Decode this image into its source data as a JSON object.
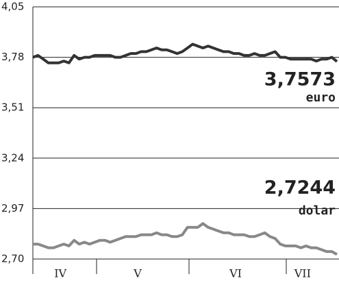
{
  "chart_data": {
    "type": "line",
    "categories": [
      null,
      null,
      null,
      null,
      null,
      null,
      "IV",
      null,
      null,
      null,
      null,
      null,
      null,
      null,
      null,
      null,
      null,
      null,
      null,
      null,
      null,
      "V",
      null,
      null,
      null,
      null,
      null,
      null,
      null,
      null,
      null,
      null,
      null,
      null,
      null,
      null,
      null,
      null,
      null,
      null,
      "VI",
      null,
      null,
      null,
      null,
      null,
      null,
      null,
      null,
      null,
      null,
      null,
      null,
      "VII",
      null,
      null,
      null,
      null,
      null,
      null
    ],
    "series": [
      {
        "name": "euro",
        "color": "#333333",
        "values": [
          3.78,
          3.79,
          3.77,
          3.75,
          3.75,
          3.75,
          3.76,
          3.75,
          3.79,
          3.77,
          3.78,
          3.78,
          3.79,
          3.79,
          3.79,
          3.79,
          3.78,
          3.78,
          3.79,
          3.8,
          3.8,
          3.81,
          3.81,
          3.82,
          3.83,
          3.82,
          3.82,
          3.81,
          3.8,
          3.81,
          3.83,
          3.85,
          3.84,
          3.83,
          3.84,
          3.83,
          3.82,
          3.81,
          3.81,
          3.8,
          3.8,
          3.79,
          3.79,
          3.8,
          3.79,
          3.79,
          3.8,
          3.81,
          3.78,
          3.78,
          3.77,
          3.77,
          3.77,
          3.77,
          3.77,
          3.76,
          3.77,
          3.77,
          3.78,
          3.7573
        ],
        "value_labels": [
          null,
          null,
          null,
          null,
          null,
          null,
          null,
          null,
          null,
          null,
          null,
          null,
          null,
          null,
          null,
          null,
          null,
          null,
          null,
          null,
          null,
          null,
          null,
          null,
          null,
          null,
          null,
          null,
          null,
          null,
          null,
          null,
          null,
          null,
          null,
          null,
          null,
          null,
          null,
          null,
          null,
          null,
          null,
          null,
          null,
          null,
          null,
          null,
          null,
          null,
          null,
          null,
          null,
          null,
          null,
          null,
          null,
          null,
          null,
          "3,7573"
        ]
      },
      {
        "name": "dolar",
        "color": "#888888",
        "values": [
          2.78,
          2.78,
          2.77,
          2.76,
          2.76,
          2.77,
          2.78,
          2.77,
          2.8,
          2.78,
          2.79,
          2.78,
          2.79,
          2.8,
          2.8,
          2.79,
          2.8,
          2.81,
          2.82,
          2.82,
          2.82,
          2.83,
          2.83,
          2.83,
          2.84,
          2.83,
          2.83,
          2.82,
          2.82,
          2.83,
          2.87,
          2.87,
          2.87,
          2.89,
          2.87,
          2.86,
          2.85,
          2.84,
          2.84,
          2.83,
          2.83,
          2.83,
          2.82,
          2.82,
          2.83,
          2.84,
          2.82,
          2.81,
          2.78,
          2.77,
          2.77,
          2.77,
          2.76,
          2.77,
          2.76,
          2.76,
          2.75,
          2.74,
          2.74,
          2.7244
        ],
        "value_labels": [
          null,
          null,
          null,
          null,
          null,
          null,
          null,
          null,
          null,
          null,
          null,
          null,
          null,
          null,
          null,
          null,
          null,
          null,
          null,
          null,
          null,
          null,
          null,
          null,
          null,
          null,
          null,
          null,
          null,
          null,
          null,
          null,
          null,
          null,
          null,
          null,
          null,
          null,
          null,
          null,
          null,
          null,
          null,
          null,
          null,
          null,
          null,
          null,
          null,
          null,
          null,
          null,
          null,
          null,
          null,
          null,
          null,
          null,
          null,
          "2,7244"
        ]
      }
    ],
    "ylim": [
      2.7,
      4.05
    ],
    "yticks": [
      {
        "value": 2.7,
        "label": "2,70"
      },
      {
        "value": 2.97,
        "label": "2,97"
      },
      {
        "value": 3.24,
        "label": "3,24"
      },
      {
        "value": 3.51,
        "label": "3,51"
      },
      {
        "value": 3.78,
        "label": "3,78"
      },
      {
        "value": 4.05,
        "label": "4,05"
      }
    ],
    "grid": true
  }
}
